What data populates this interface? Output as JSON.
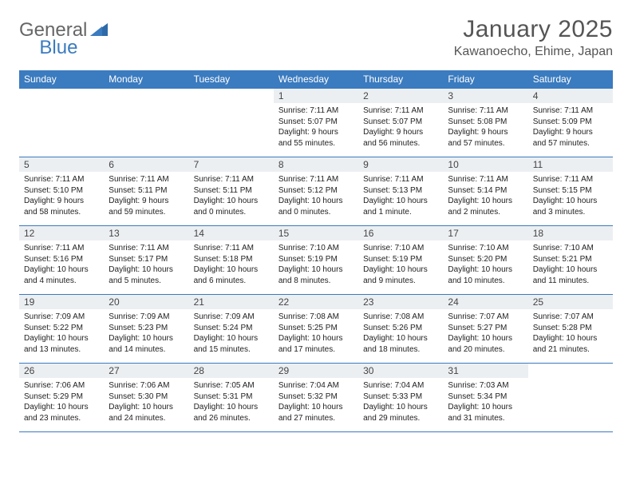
{
  "logo": {
    "general": "General",
    "blue": "Blue"
  },
  "title": "January 2025",
  "location": "Kawanoecho, Ehime, Japan",
  "colors": {
    "header_bg": "#3b7bbf",
    "header_text": "#ffffff",
    "daynum_bg": "#eceff2",
    "border": "#3b7bbf",
    "page_bg": "#ffffff",
    "body_text": "#333333"
  },
  "weekdays": [
    "Sunday",
    "Monday",
    "Tuesday",
    "Wednesday",
    "Thursday",
    "Friday",
    "Saturday"
  ],
  "weeks": [
    [
      {
        "day": "",
        "sunrise": "",
        "sunset": "",
        "daylight": ""
      },
      {
        "day": "",
        "sunrise": "",
        "sunset": "",
        "daylight": ""
      },
      {
        "day": "",
        "sunrise": "",
        "sunset": "",
        "daylight": ""
      },
      {
        "day": "1",
        "sunrise": "Sunrise: 7:11 AM",
        "sunset": "Sunset: 5:07 PM",
        "daylight": "Daylight: 9 hours and 55 minutes."
      },
      {
        "day": "2",
        "sunrise": "Sunrise: 7:11 AM",
        "sunset": "Sunset: 5:07 PM",
        "daylight": "Daylight: 9 hours and 56 minutes."
      },
      {
        "day": "3",
        "sunrise": "Sunrise: 7:11 AM",
        "sunset": "Sunset: 5:08 PM",
        "daylight": "Daylight: 9 hours and 57 minutes."
      },
      {
        "day": "4",
        "sunrise": "Sunrise: 7:11 AM",
        "sunset": "Sunset: 5:09 PM",
        "daylight": "Daylight: 9 hours and 57 minutes."
      }
    ],
    [
      {
        "day": "5",
        "sunrise": "Sunrise: 7:11 AM",
        "sunset": "Sunset: 5:10 PM",
        "daylight": "Daylight: 9 hours and 58 minutes."
      },
      {
        "day": "6",
        "sunrise": "Sunrise: 7:11 AM",
        "sunset": "Sunset: 5:11 PM",
        "daylight": "Daylight: 9 hours and 59 minutes."
      },
      {
        "day": "7",
        "sunrise": "Sunrise: 7:11 AM",
        "sunset": "Sunset: 5:11 PM",
        "daylight": "Daylight: 10 hours and 0 minutes."
      },
      {
        "day": "8",
        "sunrise": "Sunrise: 7:11 AM",
        "sunset": "Sunset: 5:12 PM",
        "daylight": "Daylight: 10 hours and 0 minutes."
      },
      {
        "day": "9",
        "sunrise": "Sunrise: 7:11 AM",
        "sunset": "Sunset: 5:13 PM",
        "daylight": "Daylight: 10 hours and 1 minute."
      },
      {
        "day": "10",
        "sunrise": "Sunrise: 7:11 AM",
        "sunset": "Sunset: 5:14 PM",
        "daylight": "Daylight: 10 hours and 2 minutes."
      },
      {
        "day": "11",
        "sunrise": "Sunrise: 7:11 AM",
        "sunset": "Sunset: 5:15 PM",
        "daylight": "Daylight: 10 hours and 3 minutes."
      }
    ],
    [
      {
        "day": "12",
        "sunrise": "Sunrise: 7:11 AM",
        "sunset": "Sunset: 5:16 PM",
        "daylight": "Daylight: 10 hours and 4 minutes."
      },
      {
        "day": "13",
        "sunrise": "Sunrise: 7:11 AM",
        "sunset": "Sunset: 5:17 PM",
        "daylight": "Daylight: 10 hours and 5 minutes."
      },
      {
        "day": "14",
        "sunrise": "Sunrise: 7:11 AM",
        "sunset": "Sunset: 5:18 PM",
        "daylight": "Daylight: 10 hours and 6 minutes."
      },
      {
        "day": "15",
        "sunrise": "Sunrise: 7:10 AM",
        "sunset": "Sunset: 5:19 PM",
        "daylight": "Daylight: 10 hours and 8 minutes."
      },
      {
        "day": "16",
        "sunrise": "Sunrise: 7:10 AM",
        "sunset": "Sunset: 5:19 PM",
        "daylight": "Daylight: 10 hours and 9 minutes."
      },
      {
        "day": "17",
        "sunrise": "Sunrise: 7:10 AM",
        "sunset": "Sunset: 5:20 PM",
        "daylight": "Daylight: 10 hours and 10 minutes."
      },
      {
        "day": "18",
        "sunrise": "Sunrise: 7:10 AM",
        "sunset": "Sunset: 5:21 PM",
        "daylight": "Daylight: 10 hours and 11 minutes."
      }
    ],
    [
      {
        "day": "19",
        "sunrise": "Sunrise: 7:09 AM",
        "sunset": "Sunset: 5:22 PM",
        "daylight": "Daylight: 10 hours and 13 minutes."
      },
      {
        "day": "20",
        "sunrise": "Sunrise: 7:09 AM",
        "sunset": "Sunset: 5:23 PM",
        "daylight": "Daylight: 10 hours and 14 minutes."
      },
      {
        "day": "21",
        "sunrise": "Sunrise: 7:09 AM",
        "sunset": "Sunset: 5:24 PM",
        "daylight": "Daylight: 10 hours and 15 minutes."
      },
      {
        "day": "22",
        "sunrise": "Sunrise: 7:08 AM",
        "sunset": "Sunset: 5:25 PM",
        "daylight": "Daylight: 10 hours and 17 minutes."
      },
      {
        "day": "23",
        "sunrise": "Sunrise: 7:08 AM",
        "sunset": "Sunset: 5:26 PM",
        "daylight": "Daylight: 10 hours and 18 minutes."
      },
      {
        "day": "24",
        "sunrise": "Sunrise: 7:07 AM",
        "sunset": "Sunset: 5:27 PM",
        "daylight": "Daylight: 10 hours and 20 minutes."
      },
      {
        "day": "25",
        "sunrise": "Sunrise: 7:07 AM",
        "sunset": "Sunset: 5:28 PM",
        "daylight": "Daylight: 10 hours and 21 minutes."
      }
    ],
    [
      {
        "day": "26",
        "sunrise": "Sunrise: 7:06 AM",
        "sunset": "Sunset: 5:29 PM",
        "daylight": "Daylight: 10 hours and 23 minutes."
      },
      {
        "day": "27",
        "sunrise": "Sunrise: 7:06 AM",
        "sunset": "Sunset: 5:30 PM",
        "daylight": "Daylight: 10 hours and 24 minutes."
      },
      {
        "day": "28",
        "sunrise": "Sunrise: 7:05 AM",
        "sunset": "Sunset: 5:31 PM",
        "daylight": "Daylight: 10 hours and 26 minutes."
      },
      {
        "day": "29",
        "sunrise": "Sunrise: 7:04 AM",
        "sunset": "Sunset: 5:32 PM",
        "daylight": "Daylight: 10 hours and 27 minutes."
      },
      {
        "day": "30",
        "sunrise": "Sunrise: 7:04 AM",
        "sunset": "Sunset: 5:33 PM",
        "daylight": "Daylight: 10 hours and 29 minutes."
      },
      {
        "day": "31",
        "sunrise": "Sunrise: 7:03 AM",
        "sunset": "Sunset: 5:34 PM",
        "daylight": "Daylight: 10 hours and 31 minutes."
      },
      {
        "day": "",
        "sunrise": "",
        "sunset": "",
        "daylight": ""
      }
    ]
  ]
}
